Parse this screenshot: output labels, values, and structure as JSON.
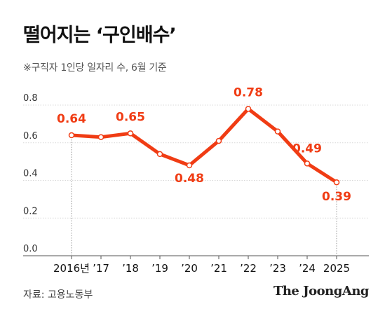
{
  "header": {
    "title": "떨어지는 ‘구인배수’",
    "subtitle": "※구직자 1인당 일자리 수, 6월 기준"
  },
  "footer": {
    "source": "자료: 고용노동부",
    "brand": "The JoongAng"
  },
  "colors": {
    "line": "#f03c14",
    "grid": "#d9d9d9",
    "axis": "#555555"
  },
  "chart_data": {
    "type": "line",
    "title": "떨어지는 ‘구인배수’",
    "subtitle": "※구직자 1인당 일자리 수, 6월 기준",
    "categories": [
      "2016년",
      "’17",
      "’18",
      "’19",
      "’20",
      "’21",
      "’22",
      "’23",
      "’24",
      "2025"
    ],
    "series": [
      {
        "values": [
          0.64,
          0.63,
          0.65,
          0.54,
          0.48,
          0.61,
          0.78,
          0.66,
          0.49,
          0.39
        ]
      }
    ],
    "labeled_points": [
      {
        "index": 0,
        "text": "0.64"
      },
      {
        "index": 2,
        "text": "0.65"
      },
      {
        "index": 4,
        "text": "0.48"
      },
      {
        "index": 6,
        "text": "0.78"
      },
      {
        "index": 8,
        "text": "0.49"
      },
      {
        "index": 9,
        "text": "0.39"
      }
    ],
    "yticks": [
      "0.0",
      "0.2",
      "0.4",
      "0.6",
      "0.8"
    ],
    "ylim": [
      0,
      0.8
    ],
    "grid": "horizontal dotted",
    "legend": "none"
  }
}
